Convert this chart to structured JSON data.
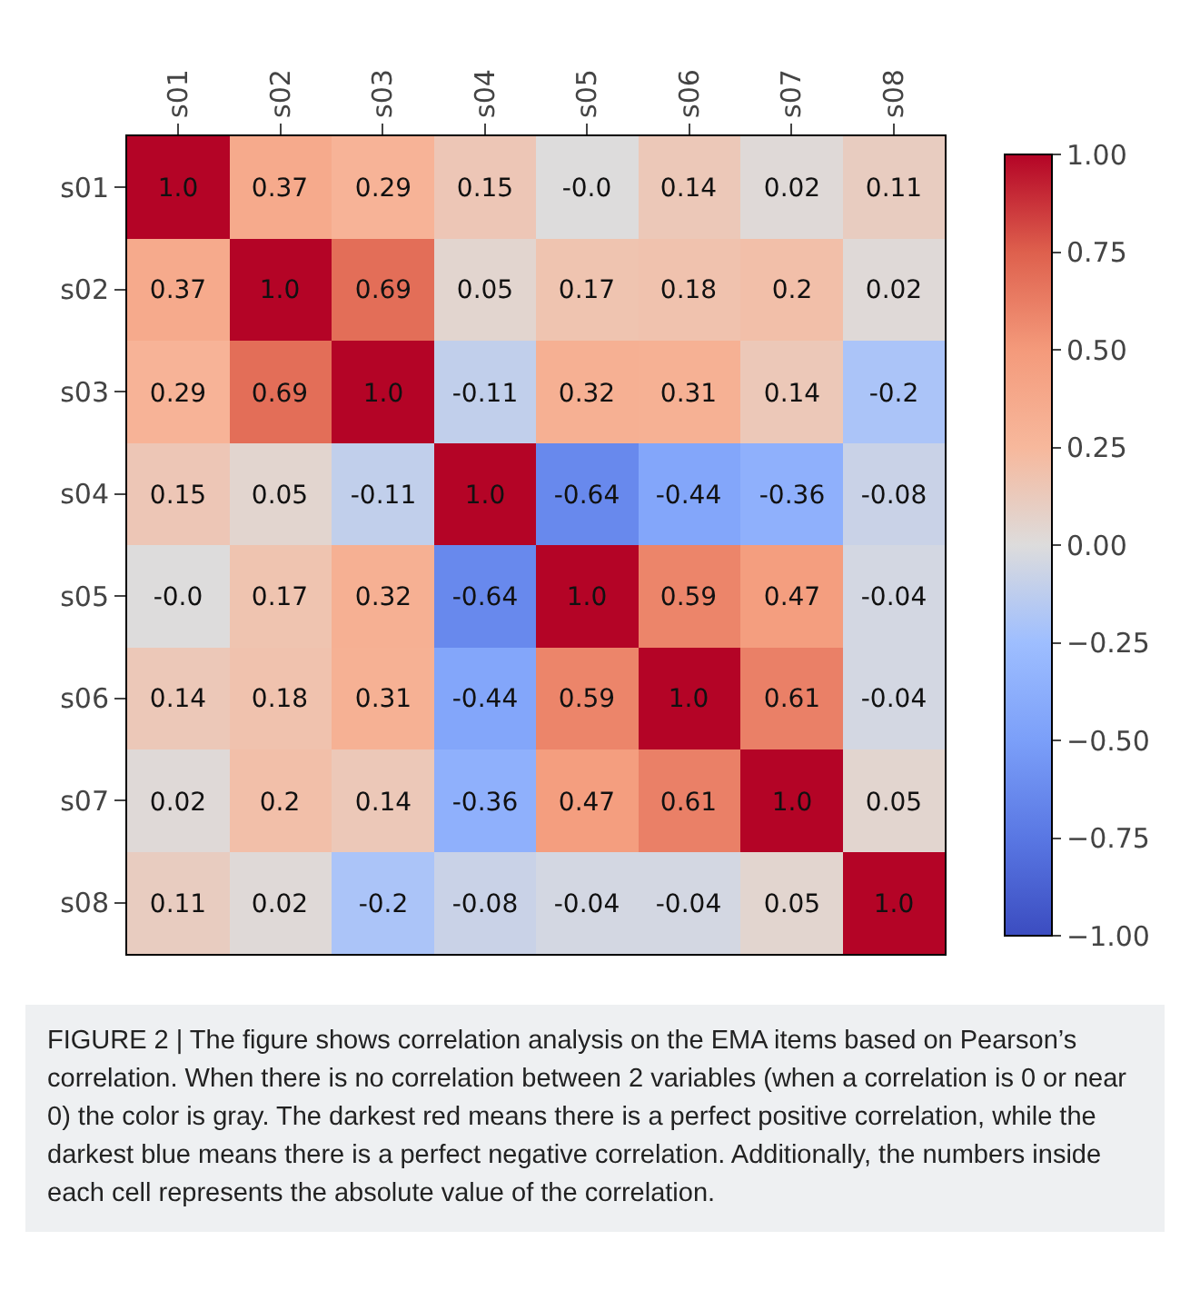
{
  "chart_data": {
    "type": "heatmap",
    "categories": [
      "s01",
      "s02",
      "s03",
      "s04",
      "s05",
      "s06",
      "s07",
      "s08"
    ],
    "y_categories": [
      "s01",
      "s02",
      "s03",
      "s04",
      "s05",
      "s06",
      "s07",
      "s08"
    ],
    "cells": [
      [
        1.0,
        0.37,
        0.29,
        0.15,
        0,
        0.14,
        0.02,
        0.11
      ],
      [
        0.37,
        1.0,
        0.69,
        0.05,
        0.17,
        0.18,
        0.2,
        0.02
      ],
      [
        0.29,
        0.69,
        1.0,
        -0.11,
        0.32,
        0.31,
        0.14,
        -0.2
      ],
      [
        0.15,
        0.05,
        -0.11,
        1.0,
        -0.64,
        -0.44,
        -0.36,
        -0.08
      ],
      [
        0,
        0.17,
        0.32,
        -0.64,
        1.0,
        0.59,
        0.47,
        -0.04
      ],
      [
        0.14,
        0.18,
        0.31,
        -0.44,
        0.59,
        1.0,
        0.61,
        -0.04
      ],
      [
        0.02,
        0.2,
        0.14,
        -0.36,
        0.47,
        0.61,
        1.0,
        0.05
      ],
      [
        0.11,
        0.02,
        -0.2,
        -0.08,
        -0.04,
        -0.04,
        0.05,
        1.0
      ]
    ],
    "cell_labels": [
      [
        "1.0",
        "0.37",
        "0.29",
        "0.15",
        "-0.0",
        "0.14",
        "0.02",
        "0.11"
      ],
      [
        "0.37",
        "1.0",
        "0.69",
        "0.05",
        "0.17",
        "0.18",
        "0.2",
        "0.02"
      ],
      [
        "0.29",
        "0.69",
        "1.0",
        "-0.11",
        "0.32",
        "0.31",
        "0.14",
        "-0.2"
      ],
      [
        "0.15",
        "0.05",
        "-0.11",
        "1.0",
        "-0.64",
        "-0.44",
        "-0.36",
        "-0.08"
      ],
      [
        "-0.0",
        "0.17",
        "0.32",
        "-0.64",
        "1.0",
        "0.59",
        "0.47",
        "-0.04"
      ],
      [
        "0.14",
        "0.18",
        "0.31",
        "-0.44",
        "0.59",
        "1.0",
        "0.61",
        "-0.04"
      ],
      [
        "0.02",
        "0.2",
        "0.14",
        "-0.36",
        "0.47",
        "0.61",
        "1.0",
        "0.05"
      ],
      [
        "0.11",
        "0.02",
        "-0.2",
        "-0.08",
        "-0.04",
        "-0.04",
        "0.05",
        "1.0"
      ]
    ],
    "clim": [
      -1,
      1
    ],
    "cticks": [
      {
        "value": -1,
        "label": "−1.00"
      },
      {
        "value": -0.75,
        "label": "−0.75"
      },
      {
        "value": -0.5,
        "label": "−0.50"
      },
      {
        "value": -0.25,
        "label": "−0.25"
      },
      {
        "value": 0,
        "label": "0.00"
      },
      {
        "value": 0.25,
        "label": "0.25"
      },
      {
        "value": 0.5,
        "label": "0.50"
      },
      {
        "value": 0.75,
        "label": "0.75"
      },
      {
        "value": 1,
        "label": "1.00"
      }
    ],
    "annotations": [
      "FIGURE 2 | The figure shows correlation analysis on the EMA items based on Pearson’s correlation. When there is no correlation between 2 variables (when a correlation is 0 or near 0) the color is gray. The darkest red means there is a perfect positive correlation, while the darkest blue means there is a perfect negative correlation. Additionally, the numbers inside each cell represents the absolute value of the correlation."
    ]
  }
}
